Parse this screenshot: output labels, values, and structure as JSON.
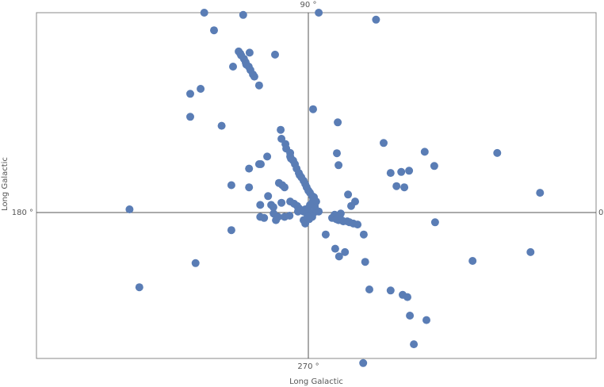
{
  "chart_data": {
    "type": "scatter",
    "title": "",
    "xlabel": "Long Galactic",
    "ylabel": "Long Galactic",
    "axis_labels": {
      "top": "90 °",
      "bottom": "270 °",
      "left": "180 °",
      "right": "0"
    },
    "xlim": [
      -1,
      1
    ],
    "ylim": [
      -1,
      1
    ],
    "grid": false,
    "point_color": "#5a7db5",
    "axis_color": "#555555",
    "frame_color": "#888888",
    "series": [
      {
        "points": [
          [
            -0.372,
            1.0
          ],
          [
            -0.233,
            0.989
          ],
          [
            0.037,
            1.0
          ],
          [
            0.242,
            0.965
          ],
          [
            -0.337,
            0.912
          ],
          [
            -0.249,
            0.806
          ],
          [
            -0.243,
            0.795
          ],
          [
            -0.24,
            0.786
          ],
          [
            -0.23,
            0.769
          ],
          [
            -0.224,
            0.752
          ],
          [
            -0.222,
            0.741
          ],
          [
            -0.213,
            0.73
          ],
          [
            -0.207,
            0.713
          ],
          [
            -0.198,
            0.691
          ],
          [
            -0.193,
            0.68
          ],
          [
            -0.176,
            0.636
          ],
          [
            -0.269,
            0.73
          ],
          [
            -0.21,
            0.8
          ],
          [
            -0.119,
            0.79
          ],
          [
            -0.422,
            0.594
          ],
          [
            -0.385,
            0.619
          ],
          [
            -0.422,
            0.479
          ],
          [
            -0.31,
            0.434
          ],
          [
            -0.099,
            0.414
          ],
          [
            0.017,
            0.517
          ],
          [
            0.105,
            0.451
          ],
          [
            0.269,
            0.348
          ],
          [
            0.416,
            0.304
          ],
          [
            0.675,
            0.298
          ],
          [
            0.828,
            0.099
          ],
          [
            0.45,
            0.233
          ],
          [
            0.36,
            0.209
          ],
          [
            0.332,
            0.203
          ],
          [
            0.294,
            0.198
          ],
          [
            0.343,
            0.126
          ],
          [
            0.315,
            0.132
          ],
          [
            -0.096,
            0.369
          ],
          [
            -0.082,
            0.343
          ],
          [
            -0.079,
            0.32
          ],
          [
            -0.065,
            0.298
          ],
          [
            -0.065,
            0.28
          ],
          [
            -0.062,
            0.27
          ],
          [
            -0.054,
            0.26
          ],
          [
            -0.048,
            0.242
          ],
          [
            -0.042,
            0.22
          ],
          [
            -0.034,
            0.198
          ],
          [
            -0.031,
            0.187
          ],
          [
            -0.025,
            0.176
          ],
          [
            -0.017,
            0.159
          ],
          [
            -0.011,
            0.143
          ],
          [
            -0.006,
            0.126
          ],
          [
            0.0,
            0.11
          ],
          [
            0.006,
            0.099
          ],
          [
            0.014,
            0.082
          ],
          [
            -0.147,
            0.28
          ],
          [
            -0.17,
            0.242
          ],
          [
            -0.176,
            0.242
          ],
          [
            -0.212,
            0.22
          ],
          [
            -0.105,
            0.148
          ],
          [
            -0.093,
            0.137
          ],
          [
            -0.085,
            0.126
          ],
          [
            -0.275,
            0.137
          ],
          [
            -0.212,
            0.126
          ],
          [
            -0.144,
            0.082
          ],
          [
            -0.125,
            0.027
          ],
          [
            -0.096,
            0.049
          ],
          [
            -0.065,
            0.055
          ],
          [
            -0.051,
            0.044
          ],
          [
            -0.04,
            0.033
          ],
          [
            -0.034,
            0.022
          ],
          [
            -0.023,
            0.011
          ],
          [
            -0.017,
            0.005
          ],
          [
            -0.006,
            0.0
          ],
          [
            0.003,
            -0.005
          ],
          [
            0.011,
            -0.011
          ],
          [
            0.02,
            0.0
          ],
          [
            0.028,
            0.011
          ],
          [
            0.037,
            0.005
          ],
          [
            0.023,
            0.033
          ],
          [
            0.028,
            0.055
          ],
          [
            0.02,
            0.077
          ],
          [
            0.017,
            0.06
          ],
          [
            0.006,
            0.038
          ],
          [
            0.0,
            0.022
          ],
          [
            -0.011,
            0.016
          ],
          [
            -0.028,
            0.011
          ],
          [
            -0.037,
            0.005
          ],
          [
            0.006,
            -0.016
          ],
          [
            0.014,
            -0.022
          ],
          [
            -0.017,
            -0.038
          ],
          [
            -0.011,
            -0.055
          ],
          [
            0.003,
            -0.033
          ],
          [
            -0.003,
            -0.022
          ],
          [
            -0.124,
            -0.005
          ],
          [
            -0.108,
            -0.022
          ],
          [
            -0.085,
            -0.022
          ],
          [
            -0.067,
            -0.016
          ],
          [
            -0.172,
            -0.022
          ],
          [
            -0.158,
            -0.027
          ],
          [
            -0.172,
            0.038
          ],
          [
            -0.133,
            0.038
          ],
          [
            -0.116,
            -0.038
          ],
          [
            -0.275,
            -0.088
          ],
          [
            -0.403,
            -0.253
          ],
          [
            -0.639,
            0.016
          ],
          [
            -0.604,
            -0.374
          ],
          [
            0.102,
            0.297
          ],
          [
            0.108,
            0.237
          ],
          [
            0.142,
            0.09
          ],
          [
            0.153,
            0.033
          ],
          [
            0.167,
            0.055
          ],
          [
            0.116,
            -0.005
          ],
          [
            0.094,
            -0.011
          ],
          [
            0.085,
            -0.027
          ],
          [
            0.1,
            -0.033
          ],
          [
            0.108,
            -0.038
          ],
          [
            0.119,
            -0.038
          ],
          [
            0.139,
            -0.044
          ],
          [
            0.125,
            -0.044
          ],
          [
            0.147,
            -0.049
          ],
          [
            0.161,
            -0.055
          ],
          [
            0.176,
            -0.06
          ],
          [
            0.198,
            -0.11
          ],
          [
            0.062,
            -0.11
          ],
          [
            0.096,
            -0.181
          ],
          [
            0.11,
            -0.22
          ],
          [
            0.131,
            -0.198
          ],
          [
            0.203,
            -0.247
          ],
          [
            0.218,
            -0.385
          ],
          [
            0.294,
            -0.39
          ],
          [
            0.337,
            -0.412
          ],
          [
            0.354,
            -0.423
          ],
          [
            0.363,
            -0.516
          ],
          [
            0.422,
            -0.538
          ],
          [
            0.377,
            -0.659
          ],
          [
            0.196,
            -0.753
          ],
          [
            0.453,
            -0.049
          ],
          [
            0.587,
            -0.242
          ],
          [
            0.794,
            -0.198
          ]
        ]
      }
    ]
  }
}
